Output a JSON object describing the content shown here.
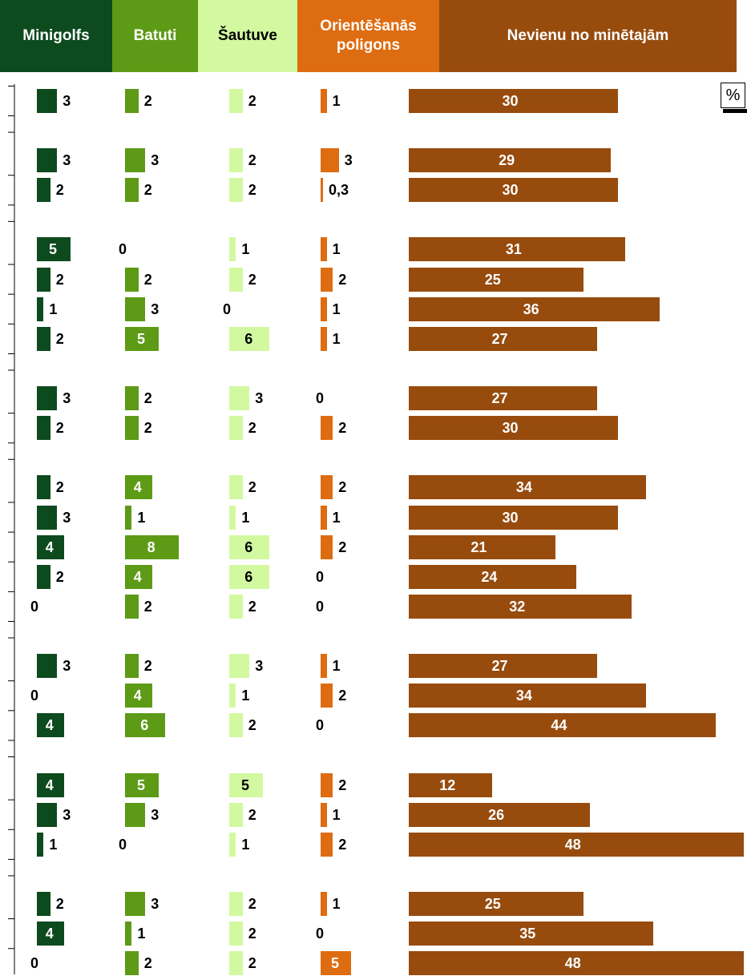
{
  "colors": {
    "minigolfs": "#0d4a1e",
    "batuti": "#5d9a16",
    "sautuve": "#d2f9a0",
    "orient": "#de6c10",
    "nevienu": "#974b0d"
  },
  "headers": {
    "minigolfs": "Minigolfs",
    "batuti": "Batuti",
    "sautuve": "Šautuve",
    "orient_line1": "Orientēšanās",
    "orient_line2": "poligons",
    "nevienu": "Nevienu no minētajām"
  },
  "percent_label": "%",
  "chart_data": {
    "type": "bar",
    "orientation": "horizontal",
    "unit": "%",
    "row_groups": [
      1,
      2,
      4,
      2,
      5,
      3,
      3,
      3
    ],
    "series": [
      {
        "name": "Minigolfs",
        "labels": [
          "3",
          "3",
          "2",
          "5",
          "2",
          "1",
          "2",
          "3",
          "2",
          "2",
          "3",
          "4",
          "2",
          "0",
          "3",
          "0",
          "4",
          "4",
          "3",
          "1",
          "2",
          "4",
          "0"
        ],
        "values": [
          3,
          3,
          2,
          5,
          2,
          1,
          2,
          3,
          2,
          2,
          3,
          4,
          2,
          0,
          3,
          0,
          4,
          4,
          3,
          1,
          2,
          4,
          0
        ]
      },
      {
        "name": "Batuti",
        "labels": [
          "2",
          "3",
          "2",
          "0",
          "2",
          "3",
          "5",
          "2",
          "2",
          "4",
          "1",
          "8",
          "4",
          "2",
          "2",
          "4",
          "6",
          "5",
          "3",
          "0",
          "3",
          "1",
          "2"
        ],
        "values": [
          2,
          3,
          2,
          0,
          2,
          3,
          5,
          2,
          2,
          4,
          1,
          8,
          4,
          2,
          2,
          4,
          6,
          5,
          3,
          0,
          3,
          1,
          2
        ]
      },
      {
        "name": "Šautuve",
        "labels": [
          "2",
          "2",
          "2",
          "1",
          "2",
          "0",
          "6",
          "3",
          "2",
          "2",
          "1",
          "6",
          "6",
          "2",
          "3",
          "1",
          "2",
          "5",
          "2",
          "1",
          "2",
          "2",
          "2"
        ],
        "values": [
          2,
          2,
          2,
          1,
          2,
          0,
          6,
          3,
          2,
          2,
          1,
          6,
          6,
          2,
          3,
          1,
          2,
          5,
          2,
          1,
          2,
          2,
          2
        ]
      },
      {
        "name": "Orientēšanās poligons",
        "labels": [
          "1",
          "3",
          "0,3",
          "1",
          "2",
          "1",
          "1",
          "0",
          "2",
          "2",
          "1",
          "2",
          "0",
          "0",
          "1",
          "2",
          "0",
          "2",
          "1",
          "2",
          "1",
          "0",
          "5"
        ],
        "values": [
          1,
          3,
          0.3,
          1,
          2,
          1,
          1,
          0,
          2,
          2,
          1,
          2,
          0,
          0,
          1,
          2,
          0,
          2,
          1,
          2,
          1,
          0,
          5
        ]
      },
      {
        "name": "Nevienu no minētajām",
        "labels": [
          "30",
          "29",
          "30",
          "31",
          "25",
          "36",
          "27",
          "27",
          "30",
          "34",
          "30",
          "21",
          "24",
          "32",
          "27",
          "34",
          "44",
          "12",
          "26",
          "48",
          "25",
          "35",
          "48"
        ],
        "values": [
          30,
          29,
          30,
          31,
          25,
          36,
          27,
          27,
          30,
          34,
          30,
          21,
          24,
          32,
          27,
          34,
          44,
          12,
          26,
          48,
          25,
          35,
          48
        ]
      }
    ]
  }
}
